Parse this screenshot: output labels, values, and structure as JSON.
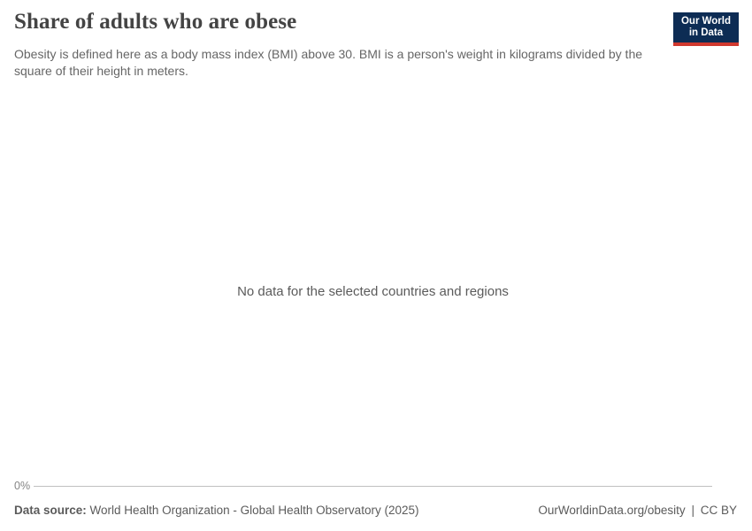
{
  "header": {
    "title": "Share of adults who are obese",
    "subtitle": "Obesity is defined here as a body mass index (BMI) above 30. BMI is a person's weight in kilograms divided by the square of their height in meters.",
    "logo": {
      "line1": "Our World",
      "line2": "in Data"
    }
  },
  "chart": {
    "no_data_message": "No data for the selected countries and regions",
    "y_axis": {
      "tick_label": "0%"
    }
  },
  "footer": {
    "source_label": "Data source:",
    "source_value": "World Health Organization - Global Health Observatory (2025)",
    "link_text": "OurWorldinData.org/obesity",
    "separator": "|",
    "license": "CC BY"
  },
  "colors": {
    "title": "#444444",
    "subtitle": "#666666",
    "no_data_text": "#5b5b5b",
    "tick_label": "#858585",
    "gridline": "#c0c0c0",
    "footer_text": "#5b5b5b",
    "logo_background": "#0d2c54",
    "logo_accent": "#d0382e"
  },
  "chart_data": {
    "type": "line",
    "title": "Share of adults who are obese",
    "subtitle": "Obesity is defined here as a body mass index (BMI) above 30. BMI is a person's weight in kilograms divided by the square of their height in meters.",
    "x": [],
    "series": [],
    "yticks": [
      "0%"
    ],
    "ylim_shown_min": 0,
    "grid": "baseline-only",
    "legend_position": "none",
    "annotations": [
      "No data for the selected countries and regions"
    ]
  }
}
